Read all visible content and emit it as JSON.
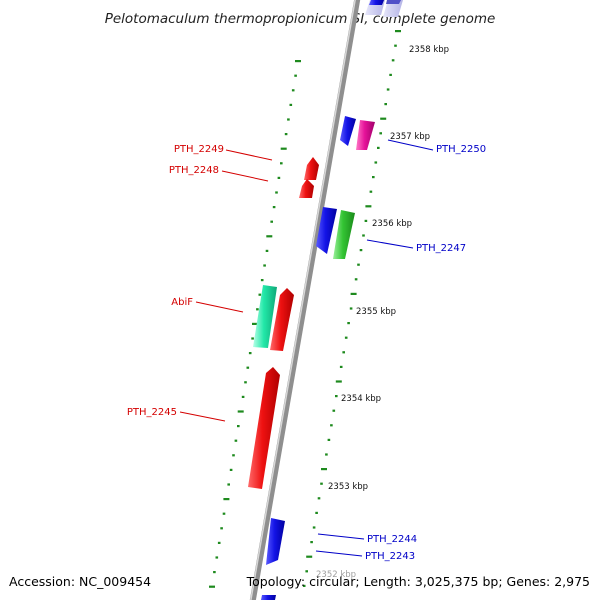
{
  "title": "Pelotomaculum thermopropionicum SI, complete genome",
  "accession": "Accession: NC_009454",
  "topology": "Topology: circular; Length: 3,025,375 bp; Genes: 2,975",
  "colors": {
    "backbone": "#8a8a8a",
    "tick": "#1e8a1e",
    "label_red": "#d40000",
    "label_blue": "#0000c8",
    "red": "#ee1111",
    "blue": "#1414e6",
    "magenta": "#e6139a",
    "green": "#33c433",
    "teal": "#22e8a8",
    "pale_blue": "#c6c6ee"
  },
  "scale_labels": [
    "2358 kbp",
    "2357 kbp",
    "2356 kbp",
    "2355 kbp",
    "2354 kbp",
    "2353 kbp",
    "2352 kbp"
  ],
  "genes": [
    {
      "label": "PTH_2250",
      "color": "magenta",
      "strand": "+"
    },
    {
      "label": "PTH_2249",
      "color": "red",
      "strand": "-"
    },
    {
      "label": "PTH_2248",
      "color": "red",
      "strand": "-"
    },
    {
      "label": "PTH_2247",
      "color": "green",
      "strand": "+"
    },
    {
      "label": "AbiF",
      "color": "teal",
      "strand": "-"
    },
    {
      "label": "PTH_2245",
      "color": "red",
      "strand": "-"
    },
    {
      "label": "PTH_2244",
      "color": "blue",
      "strand": "+"
    },
    {
      "label": "PTH_2243",
      "color": "blue",
      "strand": "+"
    }
  ]
}
